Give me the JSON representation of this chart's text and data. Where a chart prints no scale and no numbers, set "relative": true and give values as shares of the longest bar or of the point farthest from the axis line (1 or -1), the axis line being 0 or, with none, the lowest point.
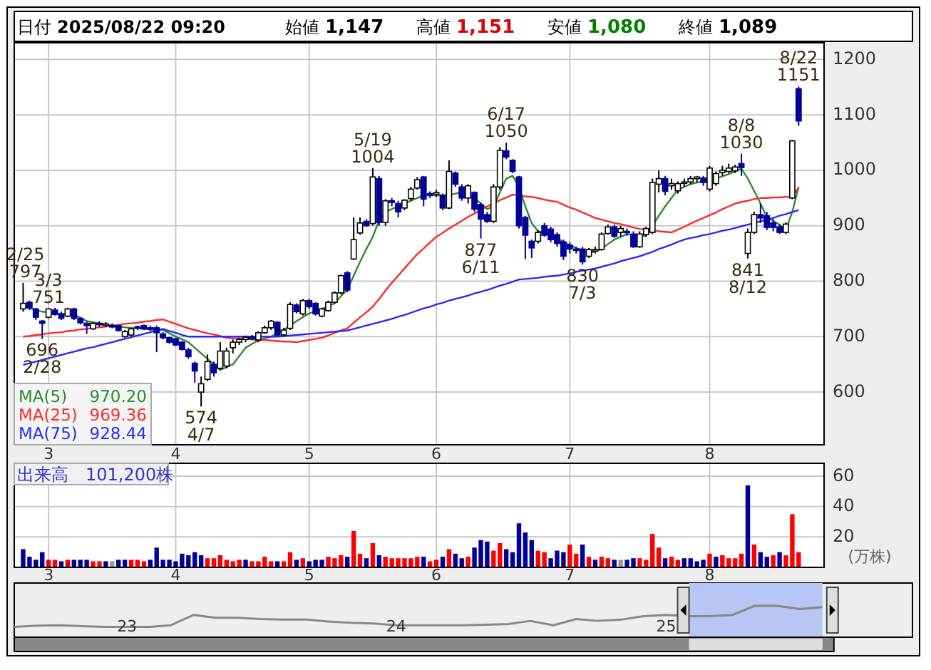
{
  "chart_data": [
    {
      "type": "candlestick",
      "title": "日付 2025/08/22 09:20",
      "ylim": [
        505,
        1230
      ],
      "yticks": [
        600,
        700,
        800,
        900,
        1000,
        1100,
        1200
      ],
      "grid": true,
      "legend": "bottom left",
      "categories": [
        null,
        null,
        null,
        null,
        "3",
        null,
        null,
        null,
        null,
        null,
        null,
        null,
        null,
        null,
        null,
        null,
        null,
        null,
        null,
        null,
        null,
        null,
        null,
        null,
        "4",
        null,
        null,
        null,
        null,
        null,
        null,
        null,
        null,
        null,
        null,
        null,
        null,
        null,
        null,
        null,
        null,
        null,
        null,
        null,
        null,
        "5",
        null,
        null,
        null,
        null,
        null,
        null,
        null,
        null,
        null,
        null,
        null,
        null,
        null,
        null,
        null,
        null,
        null,
        null,
        null,
        "6",
        null,
        null,
        null,
        null,
        null,
        null,
        null,
        null,
        null,
        null,
        null,
        null,
        null,
        null,
        null,
        null,
        null,
        null,
        null,
        null,
        "7",
        null,
        null,
        null,
        null,
        null,
        null,
        null,
        null,
        null,
        null,
        null,
        null,
        null,
        null,
        null,
        null,
        null,
        null,
        null,
        null,
        null,
        "8",
        null,
        null,
        null,
        null,
        null,
        null,
        null,
        null,
        null,
        null,
        null,
        null,
        null,
        null
      ],
      "ohlc": [
        [
          750,
          797,
          745,
          760
        ],
        [
          762,
          765,
          748,
          752
        ],
        [
          750,
          752,
          730,
          735
        ],
        [
          728,
          730,
          696,
          724
        ],
        [
          735,
          751,
          733,
          750
        ],
        [
          748,
          752,
          738,
          740
        ],
        [
          741,
          745,
          730,
          733
        ],
        [
          737,
          752,
          735,
          750
        ],
        [
          750,
          752,
          730,
          733
        ],
        [
          733,
          735,
          722,
          725
        ],
        [
          724,
          727,
          705,
          720
        ],
        [
          714,
          726,
          712,
          724
        ],
        [
          724,
          728,
          718,
          722
        ],
        [
          722,
          726,
          718,
          723
        ],
        [
          720,
          724,
          715,
          718
        ],
        [
          720,
          722,
          709,
          711
        ],
        [
          700,
          712,
          698,
          709
        ],
        [
          703,
          716,
          700,
          714
        ],
        [
          718,
          720,
          712,
          716
        ],
        [
          720,
          722,
          712,
          714
        ],
        [
          716,
          720,
          710,
          714
        ],
        [
          716,
          720,
          672,
          707
        ],
        [
          705,
          708,
          695,
          698
        ],
        [
          698,
          700,
          687,
          690
        ],
        [
          696,
          698,
          683,
          685
        ],
        [
          690,
          692,
          675,
          677
        ],
        [
          676,
          680,
          660,
          664
        ],
        [
          652,
          655,
          617,
          638
        ],
        [
          600,
          628,
          574,
          615
        ],
        [
          623,
          668,
          620,
          655
        ],
        [
          650,
          655,
          628,
          635
        ],
        [
          643,
          690,
          640,
          674
        ],
        [
          647,
          680,
          643,
          674
        ],
        [
          680,
          695,
          670,
          690
        ],
        [
          690,
          698,
          685,
          695
        ],
        [
          695,
          702,
          690,
          699
        ],
        [
          699,
          703,
          694,
          697
        ],
        [
          694,
          710,
          690,
          707
        ],
        [
          707,
          720,
          705,
          716
        ],
        [
          716,
          730,
          712,
          728
        ],
        [
          726,
          728,
          700,
          703
        ],
        [
          703,
          716,
          700,
          712
        ],
        [
          715,
          762,
          712,
          758
        ],
        [
          757,
          760,
          742,
          745
        ],
        [
          741,
          768,
          738,
          765
        ],
        [
          765,
          768,
          750,
          754
        ],
        [
          760,
          762,
          738,
          741
        ],
        [
          737,
          752,
          735,
          750
        ],
        [
          747,
          765,
          745,
          762
        ],
        [
          762,
          782,
          760,
          779
        ],
        [
          779,
          812,
          776,
          810
        ],
        [
          815,
          818,
          780,
          784
        ],
        [
          840,
          915,
          838,
          875
        ],
        [
          887,
          915,
          884,
          905
        ],
        [
          908,
          912,
          898,
          900
        ],
        [
          904,
          1004,
          900,
          988
        ],
        [
          985,
          990,
          900,
          906
        ],
        [
          906,
          948,
          900,
          945
        ],
        [
          945,
          950,
          935,
          942
        ],
        [
          940,
          945,
          915,
          925
        ],
        [
          932,
          948,
          928,
          946
        ],
        [
          949,
          970,
          945,
          966
        ],
        [
          968,
          988,
          965,
          983
        ],
        [
          988,
          990,
          935,
          948
        ],
        [
          958,
          962,
          950,
          955
        ],
        [
          957,
          965,
          952,
          960
        ],
        [
          955,
          958,
          928,
          932
        ],
        [
          932,
          1018,
          930,
          998
        ],
        [
          995,
          998,
          970,
          975
        ],
        [
          970,
          975,
          945,
          950
        ],
        [
          950,
          975,
          940,
          972
        ],
        [
          960,
          962,
          925,
          930
        ],
        [
          938,
          942,
          877,
          912
        ],
        [
          920,
          925,
          905,
          908
        ],
        [
          908,
          975,
          905,
          970
        ],
        [
          970,
          1042,
          965,
          1036
        ],
        [
          1035,
          1050,
          1020,
          1024
        ],
        [
          1018,
          1020,
          995,
          998
        ],
        [
          988,
          990,
          895,
          900
        ],
        [
          915,
          918,
          840,
          883
        ],
        [
          872,
          875,
          842,
          860
        ],
        [
          872,
          892,
          868,
          888
        ],
        [
          900,
          905,
          880,
          883
        ],
        [
          894,
          898,
          870,
          875
        ],
        [
          884,
          888,
          862,
          868
        ],
        [
          871,
          875,
          838,
          845
        ],
        [
          865,
          870,
          850,
          858
        ],
        [
          858,
          862,
          850,
          856
        ],
        [
          858,
          862,
          830,
          835
        ],
        [
          845,
          860,
          842,
          857
        ],
        [
          855,
          862,
          850,
          857
        ],
        [
          857,
          888,
          855,
          885
        ],
        [
          886,
          902,
          884,
          898
        ],
        [
          898,
          902,
          878,
          881
        ],
        [
          888,
          900,
          880,
          895
        ],
        [
          890,
          895,
          882,
          888
        ],
        [
          885,
          890,
          860,
          862
        ],
        [
          862,
          890,
          860,
          885
        ],
        [
          884,
          898,
          880,
          895
        ],
        [
          888,
          985,
          885,
          978
        ],
        [
          975,
          1000,
          960,
          985
        ],
        [
          985,
          990,
          955,
          962
        ],
        [
          972,
          985,
          965,
          976
        ],
        [
          963,
          980,
          958,
          976
        ],
        [
          977,
          985,
          970,
          979
        ],
        [
          979,
          990,
          975,
          985
        ],
        [
          985,
          990,
          978,
          988
        ],
        [
          986,
          990,
          972,
          978
        ],
        [
          966,
          1008,
          962,
          1004
        ],
        [
          976,
          998,
          972,
          994
        ],
        [
          996,
          1008,
          990,
          1000
        ],
        [
          998,
          1012,
          995,
          1004
        ],
        [
          999,
          1010,
          995,
          1006
        ],
        [
          1012,
          1030,
          990,
          1005
        ],
        [
          850,
          895,
          841,
          888
        ],
        [
          888,
          925,
          885,
          920
        ],
        [
          920,
          940,
          905,
          914
        ],
        [
          918,
          925,
          892,
          897
        ],
        [
          905,
          912,
          890,
          897
        ],
        [
          898,
          902,
          885,
          888
        ],
        [
          888,
          906,
          885,
          903
        ],
        [
          950,
          1055,
          948,
          1053
        ],
        [
          1147,
          1151,
          1080,
          1089
        ]
      ],
      "series": [
        {
          "name": "MA(5) 970.20",
          "type": "line",
          "color": "#2e8b2e",
          "values": [
            755,
            752,
            748,
            745,
            744,
            742,
            741,
            741,
            740,
            734,
            728,
            726,
            724,
            722,
            720,
            718,
            717,
            716,
            715,
            714,
            713,
            713,
            712,
            706,
            700,
            695,
            690,
            680,
            670,
            660,
            650,
            640,
            645,
            650,
            665,
            680,
            687,
            693,
            697,
            700,
            706,
            712,
            720,
            728,
            735,
            742,
            746,
            750,
            755,
            760,
            773,
            785,
            810,
            835,
            858,
            880,
            910,
            925,
            930,
            935,
            940,
            945,
            950,
            955,
            955,
            955,
            955,
            955,
            958,
            960,
            955,
            950,
            940,
            930,
            935,
            960,
            985,
            990,
            970,
            935,
            905,
            890,
            888,
            885,
            878,
            870,
            865,
            860,
            855,
            850,
            854,
            858,
            867,
            875,
            880,
            885,
            883,
            880,
            882,
            900,
            918,
            935,
            950,
            965,
            970,
            975,
            978,
            980,
            983,
            985,
            989,
            993,
            998,
            1003,
            985,
            963,
            940,
            915,
            909,
            902,
            893,
            925,
            970
          ]
        },
        {
          "name": "MA(25) 969.36",
          "type": "line",
          "color": "#ff2a2a",
          "values": [
            700,
            701,
            703,
            704,
            706,
            707,
            708,
            710,
            711,
            713,
            714,
            716,
            717,
            718,
            720,
            721,
            723,
            724,
            725,
            727,
            728,
            730,
            731,
            727,
            723,
            719,
            715,
            712,
            709,
            706,
            704,
            701,
            698,
            697,
            697,
            696,
            695,
            694,
            694,
            693,
            692,
            691,
            691,
            690,
            692,
            694,
            696,
            698,
            702,
            707,
            711,
            715,
            725,
            735,
            744,
            754,
            768,
            783,
            797,
            810,
            823,
            836,
            849,
            859,
            870,
            880,
            887,
            895,
            902,
            909,
            916,
            922,
            929,
            935,
            940,
            946,
            951,
            956,
            955,
            953,
            952,
            950,
            947,
            945,
            943,
            938,
            933,
            929,
            924,
            919,
            914,
            911,
            908,
            905,
            903,
            900,
            897,
            894,
            893,
            892,
            890,
            889,
            888,
            893,
            898,
            904,
            909,
            914,
            919,
            924,
            930,
            935,
            940,
            943,
            945,
            948,
            950,
            950,
            951,
            951,
            952,
            952,
            969
          ]
        },
        {
          "name": "MA(75) 928.44",
          "type": "line",
          "color": "#2a2aff",
          "values": [
            649,
            652,
            655,
            658,
            661,
            664,
            667,
            670,
            673,
            676,
            679,
            681,
            684,
            687,
            690,
            693,
            696,
            699,
            702,
            705,
            708,
            711,
            714,
            710,
            707,
            703,
            700,
            700,
            700,
            700,
            700,
            700,
            700,
            700,
            700,
            700,
            700,
            700,
            700,
            700,
            700,
            701,
            702,
            703,
            704,
            705,
            706,
            707,
            708,
            709,
            710,
            711,
            714,
            717,
            720,
            723,
            726,
            729,
            732,
            736,
            739,
            743,
            747,
            751,
            754,
            758,
            761,
            765,
            768,
            771,
            774,
            778,
            781,
            784,
            788,
            792,
            795,
            799,
            803,
            804,
            805,
            806,
            808,
            809,
            810,
            812,
            814,
            817,
            819,
            821,
            823,
            826,
            829,
            832,
            836,
            839,
            842,
            845,
            849,
            853,
            858,
            862,
            866,
            871,
            875,
            878,
            880,
            883,
            885,
            888,
            891,
            893,
            896,
            899,
            902,
            905,
            908,
            911,
            914,
            918,
            921,
            925,
            928
          ]
        }
      ],
      "annotations": [
        "始値 1,147",
        "高値 1,151",
        "安値 1,080",
        "終値 1,089",
        {
          "text": "2/25\n797",
          "y": 797
        },
        {
          "text": "3/3\n751",
          "y": 751
        },
        {
          "text": "696\n2/28",
          "y": 696
        },
        {
          "text": "574\n4/7",
          "y": 574
        },
        {
          "text": "5/19\n1004",
          "y": 1004
        },
        {
          "text": "6/17\n1050",
          "y": 1050
        },
        {
          "text": "877\n6/11",
          "y": 877
        },
        {
          "text": "830\n7/3",
          "y": 830
        },
        {
          "text": "8/8\n1030",
          "y": 1030
        },
        {
          "text": "841\n8/12",
          "y": 841
        },
        {
          "text": "8/22\n1151",
          "y": 1151
        }
      ]
    },
    {
      "type": "bar",
      "title": "出来高　101,200株",
      "ylabel": "(万株)",
      "ylim": [
        0,
        68.5
      ],
      "yticks": [
        20,
        40,
        60
      ],
      "grid": true,
      "categories": [
        null,
        null,
        null,
        null,
        "3",
        null,
        null,
        null,
        null,
        null,
        null,
        null,
        null,
        null,
        null,
        null,
        null,
        null,
        null,
        null,
        null,
        null,
        null,
        null,
        "4",
        null,
        null,
        null,
        null,
        null,
        null,
        null,
        null,
        null,
        null,
        null,
        null,
        null,
        null,
        null,
        null,
        null,
        null,
        null,
        null,
        "5",
        null,
        null,
        null,
        null,
        null,
        null,
        null,
        null,
        null,
        null,
        null,
        null,
        null,
        null,
        null,
        null,
        null,
        null,
        null,
        "6",
        null,
        null,
        null,
        null,
        null,
        null,
        null,
        null,
        null,
        null,
        null,
        null,
        null,
        null,
        null,
        null,
        null,
        null,
        null,
        null,
        "7",
        null,
        null,
        null,
        null,
        null,
        null,
        null,
        null,
        null,
        null,
        null,
        null,
        null,
        null,
        null,
        null,
        null,
        null,
        null,
        null,
        null,
        "8",
        null,
        null,
        null,
        null,
        null,
        null,
        null,
        null,
        null,
        null,
        null,
        null,
        null,
        null
      ],
      "values": [
        12,
        7,
        5,
        10,
        5,
        5,
        4,
        5,
        5,
        5,
        5,
        4,
        4,
        4,
        4,
        5,
        5,
        5,
        5,
        4,
        5,
        13,
        5,
        5,
        4,
        9,
        8,
        10,
        8,
        6,
        6,
        8,
        5,
        4,
        5,
        5,
        4,
        4,
        7,
        4,
        4,
        4,
        10,
        5,
        6,
        4,
        5,
        5,
        7,
        6,
        8,
        7,
        24,
        9,
        6,
        16,
        8,
        7,
        6,
        6,
        6,
        6,
        7,
        7,
        4,
        5,
        7,
        12,
        9,
        6,
        7,
        13,
        18,
        17,
        11,
        16,
        12,
        10,
        29,
        23,
        18,
        11,
        10,
        6,
        11,
        10,
        15,
        9,
        15,
        7,
        5,
        7,
        6,
        5,
        5,
        5,
        6,
        6,
        5,
        22,
        13,
        6,
        7,
        5,
        6,
        6,
        4,
        5,
        9,
        7,
        8,
        6,
        6,
        9,
        54,
        15,
        10,
        7,
        8,
        10,
        8,
        35,
        10
      ],
      "colors": [
        "#000099",
        "#000099",
        "#000099",
        "#000099",
        "#ff0000",
        "#ff0000",
        "#000099",
        "#ff0000",
        "#000099",
        "#000099",
        "#000099",
        "#ff0000",
        "#ff0000",
        "#000099",
        "#999999",
        "#000099",
        "#000099",
        "#ff0000",
        "#ff0000",
        "#ff0000",
        "#000099",
        "#000099",
        "#000099",
        "#000099",
        "#000099",
        "#000099",
        "#000099",
        "#000099",
        "#000099",
        "#ff0000",
        "#ff0000",
        "#ff0000",
        "#ff0000",
        "#ff0000",
        "#ff0000",
        "#000099",
        "#ff0000",
        "#ff0000",
        "#ff0000",
        "#ff0000",
        "#000099",
        "#ff0000",
        "#ff0000",
        "#000099",
        "#ff0000",
        "#000099",
        "#000099",
        "#000099",
        "#ff0000",
        "#ff0000",
        "#ff0000",
        "#000099",
        "#ff0000",
        "#ff0000",
        "#000099",
        "#ff0000",
        "#000099",
        "#ff0000",
        "#ff0000",
        "#ff0000",
        "#ff0000",
        "#ff0000",
        "#ff0000",
        "#000099",
        "#ff0000",
        "#ff0000",
        "#000099",
        "#ff0000",
        "#000099",
        "#000099",
        "#ff0000",
        "#000099",
        "#000099",
        "#000099",
        "#ff0000",
        "#ff0000",
        "#000099",
        "#000099",
        "#000099",
        "#000099",
        "#000099",
        "#ff0000",
        "#ff0000",
        "#000099",
        "#000099",
        "#000099",
        "#ff0000",
        "#ff0000",
        "#000099",
        "#ff0000",
        "#000099",
        "#ff0000",
        "#ff0000",
        "#000099",
        "#999999",
        "#000099",
        "#000099",
        "#ff0000",
        "#ff0000",
        "#ff0000",
        "#ff0000",
        "#000099",
        "#ff0000",
        "#ff0000",
        "#000099",
        "#000099",
        "#000099",
        "#000099",
        "#ff0000",
        "#000099",
        "#ff0000",
        "#ff0000",
        "#ff0000",
        "#ff0000",
        "#000099",
        "#ff0000",
        "#000099",
        "#000099",
        "#ff0000",
        "#000099",
        "#ff0000",
        "#ff0000",
        "#ff0000"
      ]
    },
    {
      "type": "line",
      "relative": true,
      "xlim": [
        "2022-08",
        "2025-12"
      ],
      "xticks": [
        {
          "value": "2023-01",
          "label": "23"
        },
        {
          "value": "2024-01",
          "label": "24"
        },
        {
          "value": "2025-01",
          "label": "25"
        }
      ],
      "x": [
        "2022-08",
        "2022-09",
        "2022-10",
        "2022-11",
        "2022-12",
        "2023-01",
        "2023-02",
        "2023-03",
        "2023-04",
        "2023-05",
        "2023-06",
        "2023-07",
        "2023-08",
        "2023-09",
        "2023-10",
        "2023-11",
        "2023-12",
        "2024-01",
        "2024-02",
        "2024-03",
        "2024-04",
        "2024-05",
        "2024-06",
        "2024-07",
        "2024-08",
        "2024-09",
        "2024-10",
        "2024-11",
        "2024-12",
        "2025-01",
        "2025-02",
        "2025-03",
        "2025-04",
        "2025-05",
        "2025-06",
        "2025-07",
        "2025-08"
      ],
      "series": [
        {
          "color": "#888888",
          "values": [
            0.33,
            0.37,
            0.38,
            0.35,
            0.33,
            0.33,
            0.33,
            0.38,
            0.71,
            0.62,
            0.62,
            0.58,
            0.56,
            0.56,
            0.5,
            0.46,
            0.44,
            0.38,
            0.38,
            0.38,
            0.38,
            0.4,
            0.42,
            0.52,
            0.38,
            0.58,
            0.52,
            0.56,
            0.67,
            0.71,
            0.67,
            0.67,
            0.71,
            1,
            1,
            0.9,
            0.96
          ]
        }
      ],
      "bands": [
        {
          "axis": "x",
          "from": "2025-02",
          "to": "2025-08",
          "color": "#b8c6f6"
        }
      ]
    }
  ]
}
